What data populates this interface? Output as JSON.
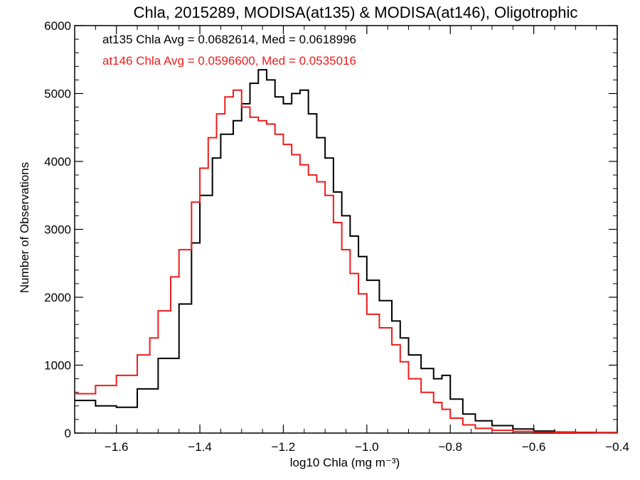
{
  "chart_data": {
    "type": "line",
    "step": true,
    "title": "Chla, 2015289, MODISA(at135) & MODISA(at146), Oligotrophic",
    "xlabel": "log10 Chla (mg m⁻³)",
    "ylabel": "Number of Observations",
    "xlim": [
      -1.7,
      -0.4
    ],
    "ylim": [
      0,
      6000
    ],
    "x_ticks": [
      -1.6,
      -1.4,
      -1.2,
      -1.0,
      -0.8,
      -0.6,
      -0.4
    ],
    "x_tick_labels": [
      "−1.6",
      "−1.4",
      "−1.2",
      "−1.0",
      "−0.8",
      "−0.6",
      "−0.4"
    ],
    "y_ticks": [
      0,
      1000,
      2000,
      3000,
      4000,
      5000,
      6000
    ],
    "y_tick_labels": [
      "0",
      "1000",
      "2000",
      "3000",
      "4000",
      "5000",
      "6000"
    ],
    "grid": false,
    "annotations": [
      {
        "text": "at135 Chla Avg = 0.0682614, Med = 0.0618996",
        "color": "#000000"
      },
      {
        "text": "at146 Chla Avg = 0.0596600, Med = 0.0535016",
        "color": "#ee1c1c"
      }
    ],
    "series": [
      {
        "color": "#000000",
        "x": [
          -1.7,
          -1.65,
          -1.6,
          -1.55,
          -1.5,
          -1.45,
          -1.42,
          -1.4,
          -1.37,
          -1.35,
          -1.32,
          -1.3,
          -1.28,
          -1.26,
          -1.24,
          -1.22,
          -1.2,
          -1.18,
          -1.16,
          -1.14,
          -1.12,
          -1.1,
          -1.08,
          -1.06,
          -1.04,
          -1.02,
          -1.0,
          -0.97,
          -0.94,
          -0.92,
          -0.9,
          -0.87,
          -0.84,
          -0.82,
          -0.8,
          -0.77,
          -0.74,
          -0.7,
          -0.65,
          -0.6,
          -0.55,
          -0.5,
          -0.45,
          -0.4
        ],
        "y": [
          480,
          400,
          380,
          650,
          1100,
          1900,
          2800,
          3500,
          4050,
          4400,
          4600,
          4850,
          5150,
          5350,
          5200,
          4950,
          4850,
          5000,
          5050,
          4700,
          4350,
          4050,
          3550,
          3200,
          2900,
          2600,
          2250,
          1950,
          1650,
          1400,
          1150,
          950,
          800,
          850,
          500,
          280,
          180,
          110,
          60,
          30,
          15,
          10,
          8,
          5
        ]
      },
      {
        "color": "#ee1c1c",
        "x": [
          -1.7,
          -1.65,
          -1.6,
          -1.55,
          -1.52,
          -1.5,
          -1.47,
          -1.45,
          -1.42,
          -1.4,
          -1.38,
          -1.36,
          -1.34,
          -1.32,
          -1.3,
          -1.28,
          -1.26,
          -1.24,
          -1.22,
          -1.2,
          -1.18,
          -1.16,
          -1.14,
          -1.12,
          -1.1,
          -1.08,
          -1.06,
          -1.04,
          -1.02,
          -1.0,
          -0.97,
          -0.94,
          -0.92,
          -0.9,
          -0.87,
          -0.84,
          -0.82,
          -0.8,
          -0.77,
          -0.74,
          -0.7,
          -0.65,
          -0.6,
          -0.55,
          -0.5,
          -0.45,
          -0.4
        ],
        "y": [
          580,
          700,
          850,
          1150,
          1400,
          1800,
          2300,
          2700,
          3400,
          3900,
          4350,
          4700,
          4950,
          5050,
          4800,
          4650,
          4600,
          4550,
          4400,
          4250,
          4100,
          3950,
          3800,
          3700,
          3500,
          3100,
          2700,
          2350,
          2050,
          1750,
          1550,
          1300,
          1050,
          800,
          600,
          450,
          350,
          220,
          120,
          70,
          40,
          25,
          15,
          10,
          8,
          5,
          3
        ]
      }
    ]
  }
}
